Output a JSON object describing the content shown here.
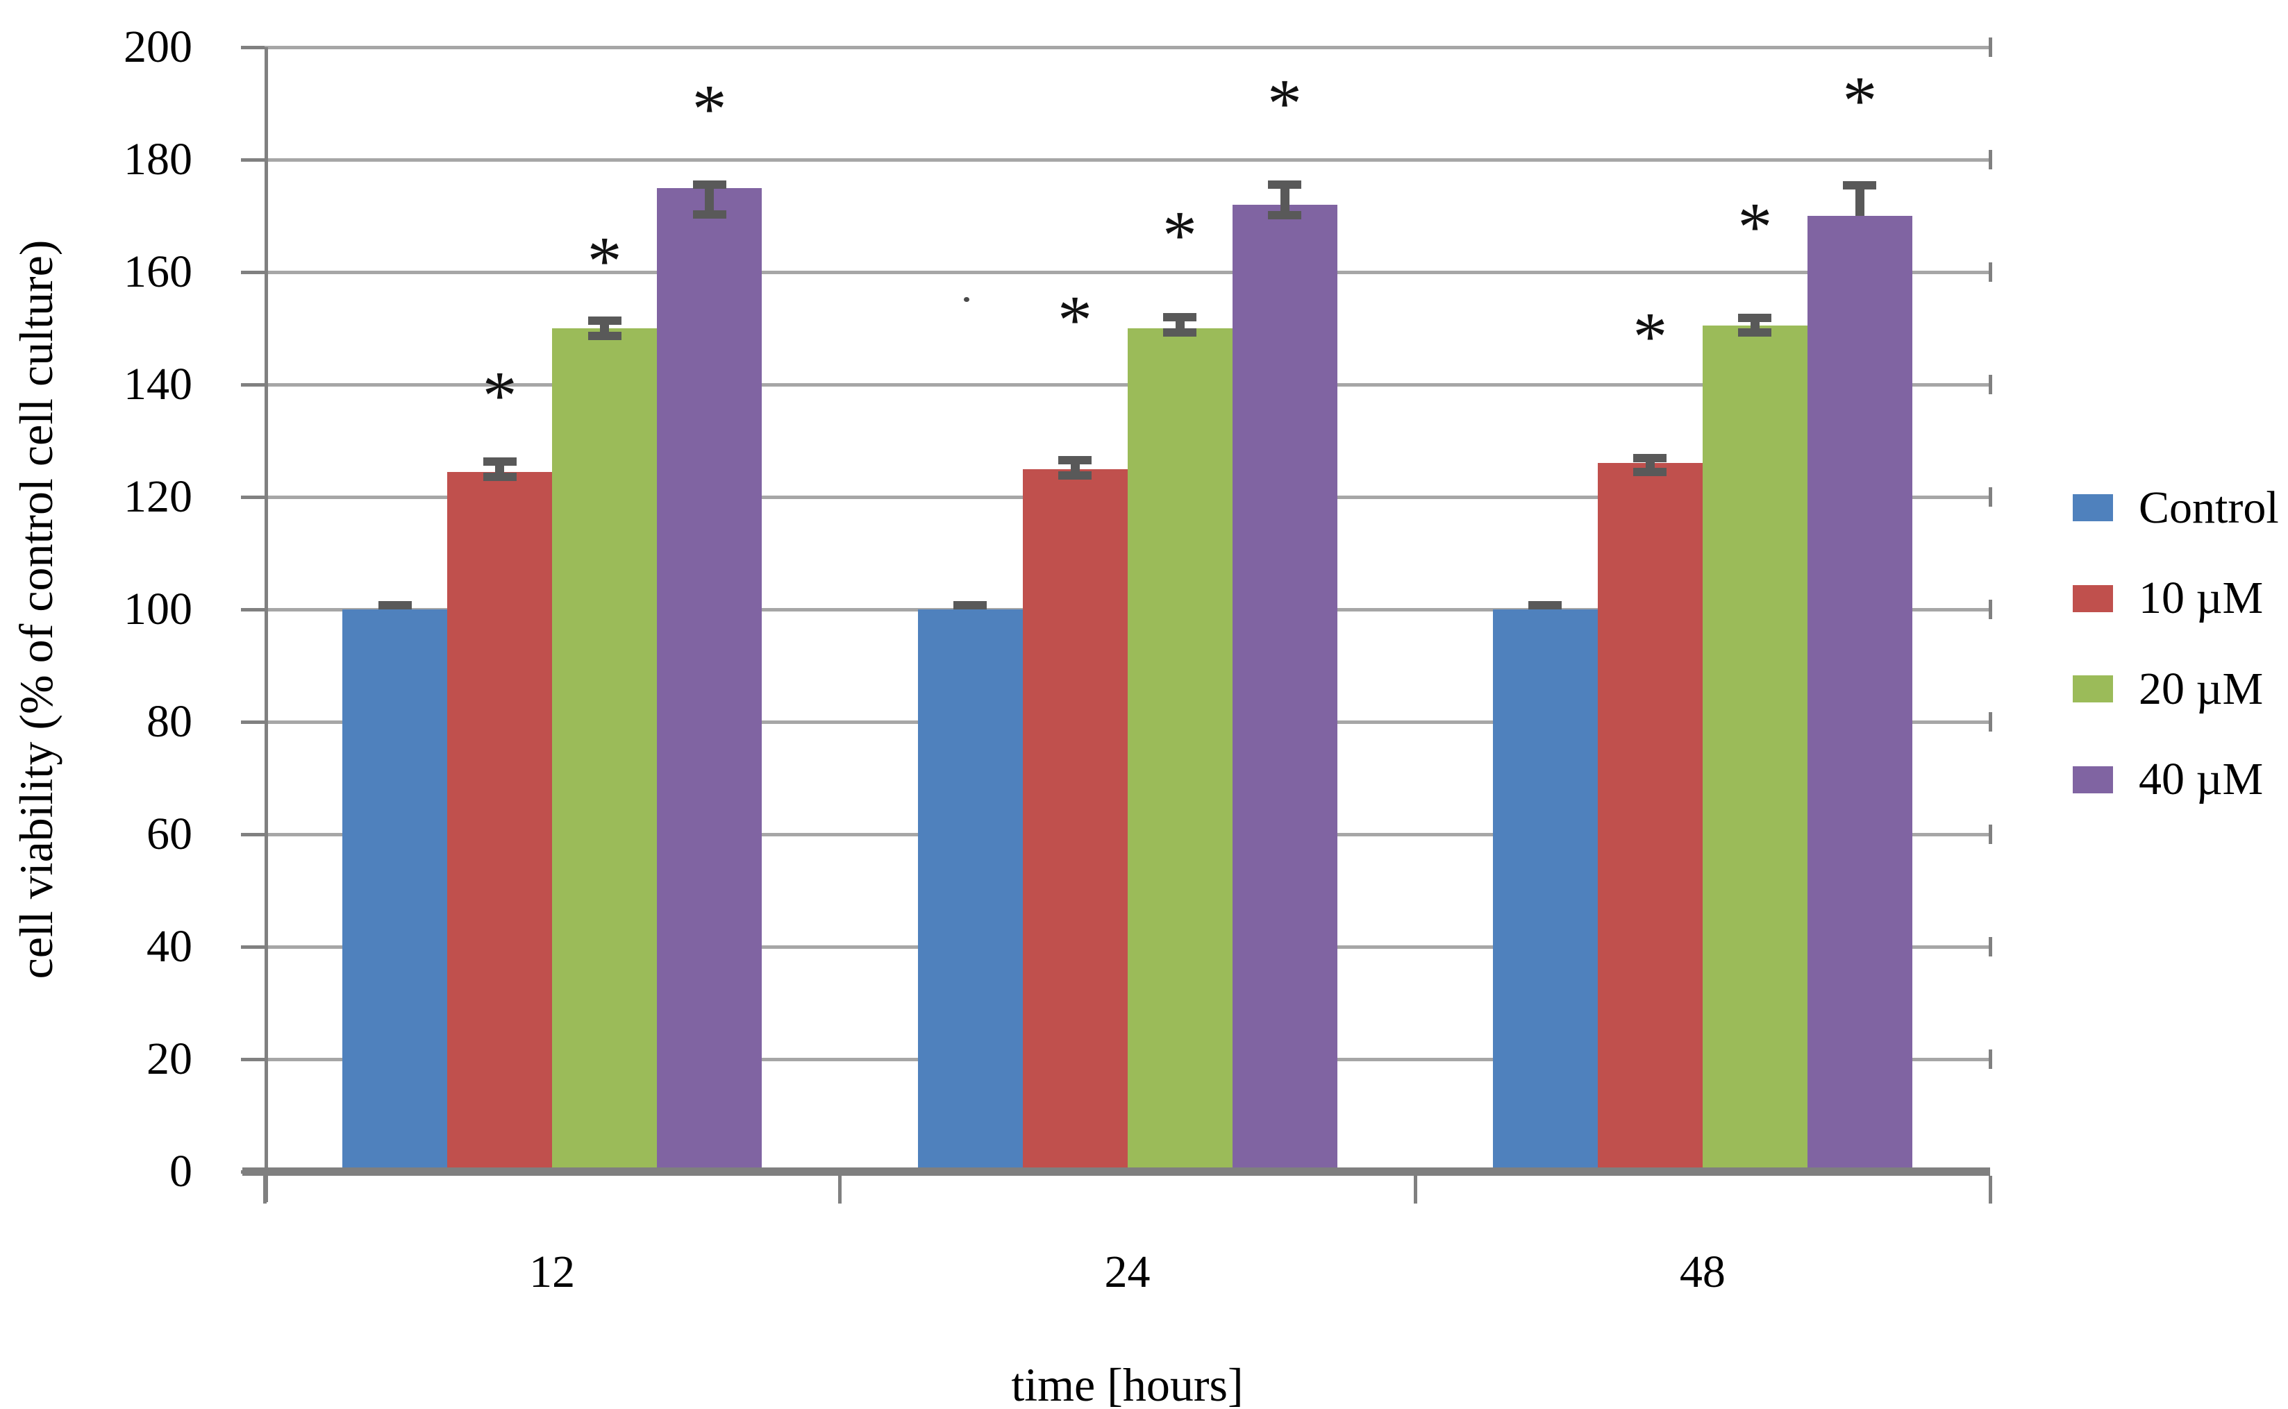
{
  "chart_data": {
    "type": "bar",
    "title": "",
    "xlabel": "time [hours]",
    "ylabel": "cell viability (% of control cell culture)",
    "categories": [
      "12",
      "24",
      "48"
    ],
    "ylim": [
      0,
      200
    ],
    "ytick_step": 20,
    "ytick_labels": [
      "0",
      "20",
      "40",
      "60",
      "80",
      "100",
      "120",
      "140",
      "160",
      "180",
      "200"
    ],
    "grid": true,
    "legend_position": "right",
    "series": [
      {
        "name": "Control",
        "color": "#4F81BD",
        "values": [
          100,
          100,
          100
        ],
        "err_up": [
          0.8,
          0.8,
          0.8
        ],
        "err_down": [
          0,
          0,
          0
        ],
        "significant": [
          false,
          false,
          false
        ]
      },
      {
        "name": "10 µM",
        "color": "#C0504D",
        "values": [
          124.5,
          125,
          126
        ],
        "err_up": [
          1.8,
          1.6,
          0.9
        ],
        "err_down": [
          0.9,
          1.2,
          1.5
        ],
        "significant": [
          true,
          true,
          true
        ]
      },
      {
        "name": "20 µM",
        "color": "#9BBB59",
        "values": [
          150,
          150,
          150.5
        ],
        "err_up": [
          1.4,
          2.0,
          1.3
        ],
        "err_down": [
          1.4,
          0.7,
          1.2
        ],
        "significant": [
          true,
          true,
          true
        ]
      },
      {
        "name": "40 µM",
        "color": "#8064A2",
        "values": [
          175,
          172,
          170
        ],
        "err_up": [
          0.6,
          3.6,
          5.4
        ],
        "err_down": [
          4.8,
          1.9,
          0.2
        ],
        "significant": [
          true,
          true,
          true
        ]
      }
    ],
    "sig_marker": "*",
    "sig_marker_y_units": [
      [
        140.5,
        154,
        151
      ],
      [
        164.5,
        169,
        170.5
      ],
      [
        191.5,
        192.5,
        193
      ]
    ],
    "colors": {
      "gridline": "#A6A6A6",
      "axis": "#808080",
      "baseline": "#7F7F7F",
      "error_bar": "#595959",
      "background": "#FFFFFF",
      "text": "#000000"
    },
    "artifacts": [
      {
        "type": "dot",
        "x": 1388,
        "y": 428
      }
    ]
  }
}
